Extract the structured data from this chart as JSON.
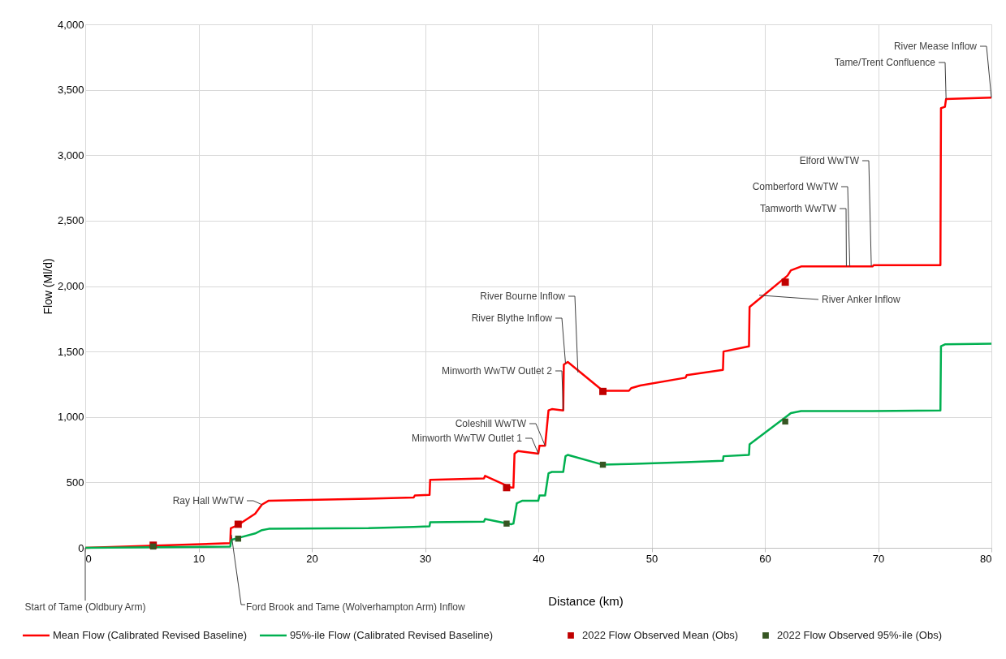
{
  "chart_data": {
    "type": "line",
    "xlabel": "Distance (km)",
    "ylabel": "Flow (Ml/d)",
    "xlim": [
      0,
      80
    ],
    "xticks": [
      0,
      10,
      20,
      30,
      40,
      50,
      60,
      70,
      80
    ],
    "ylim": [
      0,
      4000
    ],
    "yticks": [
      0,
      {
        "value": 500,
        "label": "500"
      },
      {
        "value": 1000,
        "label": "1,000"
      },
      {
        "value": 1500,
        "label": "1,500"
      },
      {
        "value": 2000,
        "label": "2,000"
      },
      {
        "value": 2500,
        "label": "2,500"
      },
      {
        "value": 3000,
        "label": "3,000"
      },
      {
        "value": 3500,
        "label": "3,500"
      },
      {
        "value": 4000,
        "label": "4,000"
      }
    ],
    "grid": true,
    "legend": "bottom",
    "series": [
      {
        "name": "Mean Flow (Calibrated Revised Baseline)",
        "color": "#ff0000",
        "marker": "none",
        "x": [
          0,
          12.8,
          12.85,
          13.5,
          15,
          15.6,
          16.2,
          25,
          29,
          29.1,
          30.4,
          30.45,
          35.2,
          35.3,
          37.6,
          37.8,
          37.9,
          38.2,
          40.0,
          40.1,
          40.6,
          40.9,
          41.2,
          42.2,
          42.25,
          42.6,
          45.7,
          48,
          48.2,
          49,
          53,
          53.1,
          56.3,
          56.35,
          58.6,
          58.65,
          62,
          62.3,
          63.2,
          69.5,
          69.6,
          75.5,
          75.55,
          75.9,
          76.0,
          80
        ],
        "values": [
          0,
          35,
          150,
          175,
          260,
          330,
          360,
          375,
          385,
          400,
          405,
          520,
          530,
          550,
          460,
          460,
          720,
          740,
          720,
          780,
          780,
          1050,
          1060,
          1050,
          1400,
          1420,
          1200,
          1200,
          1220,
          1240,
          1300,
          1320,
          1360,
          1500,
          1540,
          1840,
          2080,
          2120,
          2150,
          2150,
          2160,
          2160,
          3360,
          3370,
          3430,
          3440
        ]
      },
      {
        "name": "95%-ile Flow (Calibrated Revised Baseline)",
        "color": "#00b050",
        "marker": "none",
        "x": [
          0,
          12.8,
          12.9,
          13.5,
          15,
          15.6,
          16.2,
          25,
          29,
          30.4,
          30.45,
          35.2,
          35.3,
          37.6,
          37.8,
          38.1,
          38.6,
          40,
          40.1,
          40.6,
          40.9,
          41.2,
          42.2,
          42.4,
          42.6,
          45.7,
          48,
          53,
          56.3,
          56.35,
          58.6,
          58.65,
          62,
          62.3,
          63.2,
          69.5,
          75.5,
          75.55,
          75.9,
          80
        ],
        "values": [
          0,
          10,
          60,
          75,
          110,
          135,
          145,
          150,
          160,
          165,
          195,
          200,
          220,
          180,
          185,
          340,
          360,
          360,
          400,
          400,
          570,
          580,
          580,
          700,
          710,
          635,
          640,
          655,
          665,
          700,
          710,
          790,
          1010,
          1030,
          1045,
          1045,
          1050,
          1540,
          1555,
          1560
        ]
      },
      {
        "name": "2022 Flow Observed Mean (Obs)",
        "type": "scatter",
        "color": "#c00000",
        "marker": "square",
        "x": [
          6,
          13.5,
          37.2,
          45.7,
          61.8
        ],
        "values": [
          20,
          180,
          460,
          1195,
          2030
        ]
      },
      {
        "name": "2022 Flow Observed 95%-ile (Obs)",
        "type": "scatter",
        "color": "#375623",
        "marker": "square",
        "x": [
          6,
          13.5,
          37.2,
          45.7,
          61.8
        ],
        "values": [
          10,
          70,
          185,
          635,
          965
        ]
      }
    ],
    "annotations": [
      {
        "text": "Start of Tame (Oldbury Arm)",
        "x": 0,
        "y": 0
      },
      {
        "text": "Ford Brook and Tame (Wolverhampton Arm) Inflow",
        "x": 12.9,
        "y": 100
      },
      {
        "text": "Ray Hall  WwTW",
        "x": 15.6,
        "y": 330
      },
      {
        "text": "Minworth  WwTW Outlet 1",
        "x": 40.0,
        "y": 720
      },
      {
        "text": "Coleshill  WwTW",
        "x": 40.6,
        "y": 780
      },
      {
        "text": "Minworth  WwTW Outlet 2",
        "x": 42.2,
        "y": 1050
      },
      {
        "text": "River Blythe Inflow",
        "x": 42.4,
        "y": 1410
      },
      {
        "text": "River Bourne Inflow",
        "x": 43.5,
        "y": 1340
      },
      {
        "text": "River Anker Inflow",
        "x": 59.5,
        "y": 1930
      },
      {
        "text": "Tamworth  WwTW",
        "x": 67.2,
        "y": 2150
      },
      {
        "text": "Comberford  WwTW",
        "x": 67.5,
        "y": 2150
      },
      {
        "text": "Elford  WwTW",
        "x": 69.4,
        "y": 2150
      },
      {
        "text": "Tame/Trent Confluence",
        "x": 76.0,
        "y": 3430
      },
      {
        "text": "River Mease Inflow",
        "x": 80,
        "y": 3440
      }
    ]
  }
}
